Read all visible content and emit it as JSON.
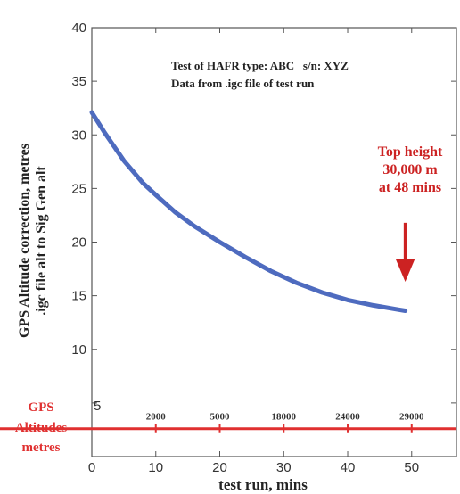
{
  "chart_data": {
    "type": "line",
    "xlabel": "test run, mins",
    "ylabel_line1": "GPS Altitude correction, metres",
    "ylabel_line2": ".igc file alt to Sig Gen alt",
    "xlim": [
      0,
      57
    ],
    "ylim": [
      0,
      40
    ],
    "xticks": [
      0,
      10,
      20,
      30,
      40,
      50
    ],
    "yticks": [
      5,
      10,
      15,
      20,
      25,
      30,
      35,
      40
    ],
    "grid": false,
    "series": [
      {
        "x": [
          0,
          2,
          5,
          8,
          10,
          13,
          16,
          20,
          24,
          28,
          32,
          36,
          40,
          44,
          48,
          49
        ],
        "y": [
          32.1,
          30.2,
          27.6,
          25.5,
          24.4,
          22.8,
          21.5,
          20.0,
          18.6,
          17.3,
          16.2,
          15.3,
          14.6,
          14.1,
          13.7,
          13.6
        ],
        "color": "#4e6bbf"
      }
    ],
    "info_box": {
      "line1": "Test of HAFR type: ABC   s/n: XYZ",
      "line2": "Data from .igc file of test run"
    },
    "annotation": {
      "lines": [
        "Top height",
        "30,000 m",
        "at 48 mins"
      ],
      "color": "#cc2222",
      "arrow_x": 49,
      "arrow_from_y": 21.8,
      "arrow_to_y": 16.3
    },
    "gps_altitudes": {
      "label_lines": [
        "GPS",
        "Altitudes",
        "metres"
      ],
      "y": 2.6,
      "color": "#e03030",
      "marks": [
        {
          "x": 10,
          "label": "2000"
        },
        {
          "x": 20,
          "label": "5000"
        },
        {
          "x": 30,
          "label": "18000"
        },
        {
          "x": 40,
          "label": "24000"
        },
        {
          "x": 50,
          "label": "29000"
        }
      ]
    }
  }
}
